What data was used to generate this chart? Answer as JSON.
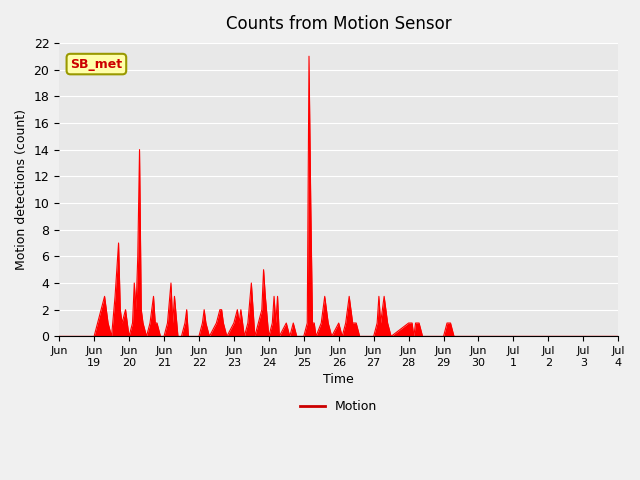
{
  "title": "Counts from Motion Sensor",
  "xlabel": "Time",
  "ylabel": "Motion detections (count)",
  "legend_label": "Motion",
  "legend_line_color": "#cc0000",
  "annotation_text": "SB_met",
  "annotation_bg": "#ffffaa",
  "annotation_text_color": "#cc0000",
  "line_color": "#ff0000",
  "plot_bg": "#e8e8e8",
  "fig_bg": "#f0f0f0",
  "ylim": [
    0,
    22
  ],
  "yticks": [
    0,
    2,
    4,
    6,
    8,
    10,
    12,
    14,
    16,
    18,
    20,
    22
  ],
  "xlim": [
    0,
    16
  ],
  "xtick_positions": [
    0,
    1,
    2,
    3,
    4,
    5,
    6,
    7,
    8,
    9,
    10,
    11,
    12,
    13,
    14,
    15,
    16
  ],
  "xtick_labels": [
    "Jun",
    "Jun\n19",
    "Jun\n20",
    "Jun\n21",
    "Jun\n22",
    "Jun\n23",
    "Jun\n24",
    "Jun\n25",
    "Jun\n26",
    "Jun\n27",
    "Jun\n28",
    "Jun\n29",
    "Jun\n30",
    "Jul\n1",
    "Jul\n2",
    "Jul\n3",
    "Jul\n4"
  ],
  "data_points": [
    [
      0.0,
      0
    ],
    [
      1.0,
      0
    ],
    [
      1.2,
      2
    ],
    [
      1.3,
      3
    ],
    [
      1.35,
      2
    ],
    [
      1.4,
      1
    ],
    [
      1.5,
      0
    ],
    [
      1.6,
      3
    ],
    [
      1.7,
      7
    ],
    [
      1.75,
      2
    ],
    [
      1.8,
      1
    ],
    [
      1.9,
      2
    ],
    [
      2.0,
      0
    ],
    [
      2.1,
      1
    ],
    [
      2.15,
      4
    ],
    [
      2.2,
      2
    ],
    [
      2.25,
      6
    ],
    [
      2.3,
      14
    ],
    [
      2.35,
      2
    ],
    [
      2.4,
      1
    ],
    [
      2.5,
      0
    ],
    [
      2.6,
      1
    ],
    [
      2.65,
      2
    ],
    [
      2.7,
      3
    ],
    [
      2.75,
      1
    ],
    [
      2.8,
      1
    ],
    [
      2.9,
      0
    ],
    [
      3.0,
      0
    ],
    [
      3.1,
      1
    ],
    [
      3.2,
      4
    ],
    [
      3.25,
      1
    ],
    [
      3.3,
      3
    ],
    [
      3.4,
      0
    ],
    [
      3.5,
      0
    ],
    [
      3.6,
      1
    ],
    [
      3.65,
      2
    ],
    [
      3.7,
      0
    ],
    [
      4.0,
      0
    ],
    [
      4.1,
      1
    ],
    [
      4.15,
      2
    ],
    [
      4.2,
      1
    ],
    [
      4.3,
      0
    ],
    [
      4.5,
      1
    ],
    [
      4.6,
      2
    ],
    [
      4.65,
      2
    ],
    [
      4.7,
      1
    ],
    [
      4.8,
      0
    ],
    [
      5.0,
      1
    ],
    [
      5.1,
      2
    ],
    [
      5.15,
      1
    ],
    [
      5.2,
      2
    ],
    [
      5.3,
      0
    ],
    [
      5.4,
      1
    ],
    [
      5.5,
      4
    ],
    [
      5.6,
      0
    ],
    [
      5.7,
      1
    ],
    [
      5.8,
      2
    ],
    [
      5.85,
      5
    ],
    [
      5.9,
      3
    ],
    [
      6.0,
      0
    ],
    [
      6.1,
      1
    ],
    [
      6.15,
      3
    ],
    [
      6.2,
      1
    ],
    [
      6.25,
      3
    ],
    [
      6.3,
      0
    ],
    [
      6.5,
      1
    ],
    [
      6.6,
      0
    ],
    [
      6.7,
      1
    ],
    [
      6.8,
      0
    ],
    [
      7.0,
      0
    ],
    [
      7.1,
      1
    ],
    [
      7.15,
      21
    ],
    [
      7.2,
      10
    ],
    [
      7.25,
      1
    ],
    [
      7.3,
      1
    ],
    [
      7.35,
      0
    ],
    [
      7.5,
      1
    ],
    [
      7.6,
      3
    ],
    [
      7.7,
      1
    ],
    [
      7.8,
      0
    ],
    [
      8.0,
      1
    ],
    [
      8.1,
      0
    ],
    [
      8.2,
      1
    ],
    [
      8.3,
      3
    ],
    [
      8.4,
      1
    ],
    [
      8.5,
      1
    ],
    [
      8.6,
      0
    ],
    [
      9.0,
      0
    ],
    [
      9.1,
      1
    ],
    [
      9.15,
      3
    ],
    [
      9.2,
      1
    ],
    [
      9.3,
      3
    ],
    [
      9.4,
      1
    ],
    [
      9.5,
      0
    ],
    [
      10.0,
      1
    ],
    [
      10.1,
      1
    ],
    [
      10.15,
      0
    ],
    [
      10.2,
      1
    ],
    [
      10.3,
      1
    ],
    [
      10.4,
      0
    ],
    [
      11.0,
      0
    ],
    [
      11.1,
      1
    ],
    [
      11.2,
      1
    ],
    [
      11.3,
      0
    ],
    [
      12.0,
      0
    ],
    [
      13.0,
      0
    ],
    [
      14.0,
      0
    ],
    [
      15.0,
      0
    ],
    [
      16.0,
      0
    ]
  ]
}
